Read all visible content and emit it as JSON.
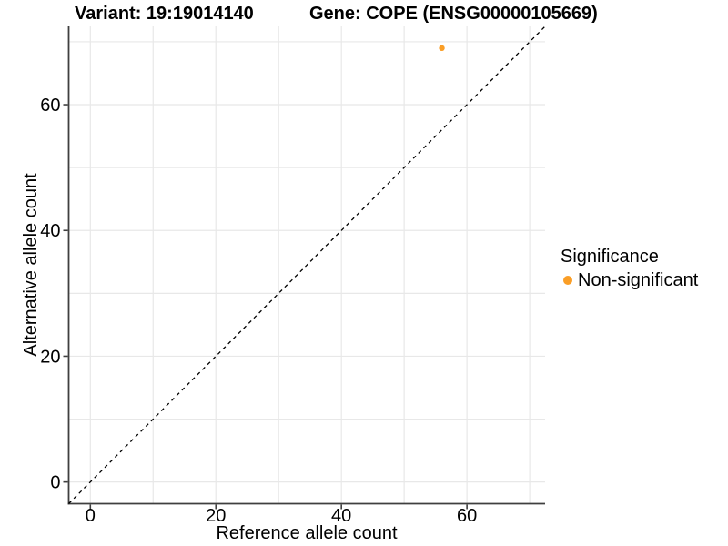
{
  "titles": {
    "variant": "Variant: 19:19014140",
    "gene": "Gene: COPE (ENSG00000105669)"
  },
  "legend": {
    "title": "Significance",
    "items": [
      {
        "label": "Non-significant",
        "color": "#FA9E26",
        "marker": "circle-icon"
      }
    ]
  },
  "chart_data": {
    "type": "scatter",
    "title": "Variant: 19:19014140   Gene: COPE (ENSG00000105669)",
    "xlabel": "Reference allele count",
    "ylabel": "Alternative allele count",
    "xlim": [
      -3.45,
      72.45
    ],
    "ylim": [
      -3.45,
      72.45
    ],
    "x_ticks": [
      0,
      20,
      40,
      60
    ],
    "y_ticks": [
      0,
      20,
      40,
      60
    ],
    "grid_lines_x": [
      0,
      10,
      20,
      30,
      40,
      50,
      60,
      70
    ],
    "grid_lines_y": [
      0,
      10,
      20,
      30,
      40,
      50,
      60,
      70
    ],
    "grid": true,
    "legend_position": "right",
    "series": [
      {
        "name": "Non-significant",
        "color": "#FA9E26",
        "points": [
          {
            "x": 56,
            "y": 69
          }
        ]
      }
    ],
    "reference_line": {
      "kind": "identity y = x",
      "from": [
        -3.45,
        -3.45
      ],
      "to": [
        72.45,
        72.45
      ],
      "style": "dashed",
      "color": "#000000"
    },
    "colors": {
      "background": "#FFFFFF",
      "grid": "#E8E8E8",
      "axis_line": "#3F3F3F",
      "text": "#000000"
    }
  }
}
